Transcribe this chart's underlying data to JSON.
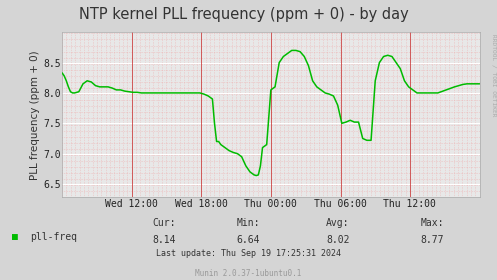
{
  "title": "NTP kernel PLL frequency (ppm + 0) - by day",
  "ylabel": "PLL frequency (ppm + 0)",
  "background_color": "#d5d5d5",
  "plot_bg_color": "#e8e8e8",
  "grid_white_color": "#ffffff",
  "grid_red_color": "#f0a0a0",
  "line_color": "#00bb00",
  "line_width": 1.1,
  "ylim": [
    6.28,
    9.0
  ],
  "yticks": [
    6.5,
    7.0,
    7.5,
    8.0,
    8.5
  ],
  "xtick_labels": [
    "Wed 12:00",
    "Wed 18:00",
    "Thu 00:00",
    "Thu 06:00",
    "Thu 12:00"
  ],
  "xtick_positions": [
    0.167,
    0.333,
    0.5,
    0.667,
    0.833
  ],
  "legend_label": "pll-freq",
  "legend_color": "#00bb00",
  "cur_label": "Cur:",
  "cur_val": "8.14",
  "min_label": "Min:",
  "min_val": "6.64",
  "avg_label": "Avg:",
  "avg_val": "8.02",
  "max_label": "Max:",
  "max_val": "8.77",
  "last_update": "Last update: Thu Sep 19 17:25:31 2024",
  "munin_version": "Munin 2.0.37-1ubuntu0.1",
  "rrdtool_label": "RRDTOOL / TOBI OETIKER",
  "title_fontsize": 10.5,
  "ylabel_fontsize": 7.5,
  "tick_fontsize": 7,
  "stats_fontsize": 7,
  "legend_fontsize": 7,
  "munin_fontsize": 5.5,
  "x_data": [
    0.0,
    0.005,
    0.01,
    0.015,
    0.02,
    0.025,
    0.03,
    0.04,
    0.05,
    0.06,
    0.07,
    0.08,
    0.09,
    0.1,
    0.11,
    0.12,
    0.13,
    0.14,
    0.15,
    0.16,
    0.17,
    0.18,
    0.19,
    0.2,
    0.21,
    0.22,
    0.23,
    0.24,
    0.25,
    0.26,
    0.27,
    0.28,
    0.29,
    0.3,
    0.31,
    0.32,
    0.33,
    0.34,
    0.35,
    0.36,
    0.365,
    0.37,
    0.375,
    0.38,
    0.39,
    0.4,
    0.41,
    0.42,
    0.43,
    0.44,
    0.45,
    0.46,
    0.465,
    0.47,
    0.475,
    0.48,
    0.49,
    0.5,
    0.51,
    0.52,
    0.53,
    0.54,
    0.55,
    0.56,
    0.57,
    0.58,
    0.59,
    0.6,
    0.61,
    0.62,
    0.63,
    0.64,
    0.65,
    0.66,
    0.67,
    0.68,
    0.69,
    0.7,
    0.71,
    0.72,
    0.73,
    0.74,
    0.75,
    0.76,
    0.77,
    0.78,
    0.79,
    0.8,
    0.81,
    0.82,
    0.83,
    0.84,
    0.85,
    0.86,
    0.87,
    0.88,
    0.89,
    0.9,
    0.92,
    0.94,
    0.95,
    0.96,
    0.97,
    0.98,
    0.99,
    1.0
  ],
  "y_data": [
    8.33,
    8.28,
    8.2,
    8.1,
    8.02,
    8.0,
    8.0,
    8.02,
    8.15,
    8.2,
    8.18,
    8.12,
    8.1,
    8.1,
    8.1,
    8.08,
    8.05,
    8.05,
    8.03,
    8.02,
    8.01,
    8.01,
    8.0,
    8.0,
    8.0,
    8.0,
    8.0,
    8.0,
    8.0,
    8.0,
    8.0,
    8.0,
    8.0,
    8.0,
    8.0,
    8.0,
    8.0,
    7.98,
    7.95,
    7.9,
    7.5,
    7.2,
    7.2,
    7.15,
    7.1,
    7.05,
    7.02,
    7.0,
    6.95,
    6.8,
    6.7,
    6.65,
    6.64,
    6.65,
    6.8,
    7.1,
    7.15,
    8.05,
    8.1,
    8.5,
    8.6,
    8.65,
    8.7,
    8.7,
    8.68,
    8.6,
    8.45,
    8.2,
    8.1,
    8.05,
    8.0,
    7.98,
    7.95,
    7.8,
    7.5,
    7.52,
    7.55,
    7.52,
    7.52,
    7.25,
    7.22,
    7.22,
    8.2,
    8.5,
    8.6,
    8.62,
    8.6,
    8.5,
    8.4,
    8.2,
    8.1,
    8.05,
    8.0,
    8.0,
    8.0,
    8.0,
    8.0,
    8.0,
    8.05,
    8.1,
    8.12,
    8.14,
    8.15,
    8.15,
    8.15,
    8.15
  ]
}
